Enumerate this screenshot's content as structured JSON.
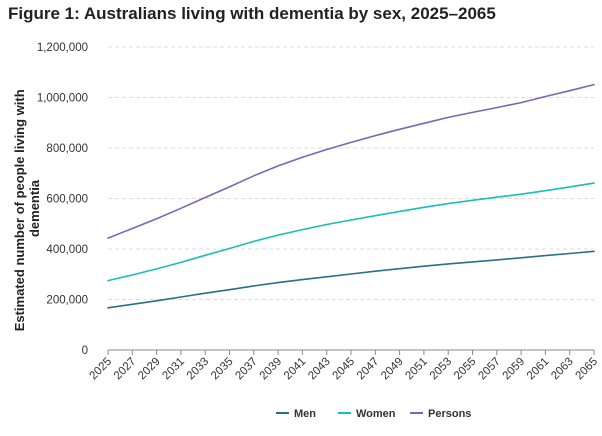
{
  "chart_data": {
    "type": "line",
    "title": "Figure 1: Australians living with dementia by sex, 2025–2065",
    "xlabel": "",
    "ylabel_lines": [
      "Estimated number of people living with",
      "dementia"
    ],
    "ylim": [
      0,
      1200000
    ],
    "yticks": [
      0,
      200000,
      400000,
      600000,
      800000,
      1000000,
      1200000
    ],
    "ytick_labels": [
      "0",
      "200,000",
      "400,000",
      "600,000",
      "800,000",
      "1,000,000",
      "1,200,000"
    ],
    "x": [
      2025,
      2027,
      2029,
      2031,
      2033,
      2035,
      2037,
      2039,
      2041,
      2043,
      2045,
      2047,
      2049,
      2051,
      2053,
      2055,
      2057,
      2059,
      2061,
      2063,
      2065
    ],
    "xtick_labels": [
      "2025",
      "2027",
      "2029",
      "2031",
      "2033",
      "2035",
      "2037",
      "2039",
      "2041",
      "2043",
      "2045",
      "2047",
      "2049",
      "2051",
      "2053",
      "2055",
      "2057",
      "2059",
      "2061",
      "2063",
      "2065"
    ],
    "grid": "horizontal dashed",
    "legend_position": "bottom-center",
    "series": [
      {
        "name": "Men",
        "color": "#2a6f86",
        "values": [
          167000,
          181000,
          195000,
          210000,
          225000,
          239000,
          254000,
          267000,
          279000,
          290000,
          301000,
          312000,
          322000,
          332000,
          341000,
          349000,
          357000,
          365000,
          374000,
          382000,
          391000
        ]
      },
      {
        "name": "Women",
        "color": "#17bfb8",
        "values": [
          275000,
          297000,
          321000,
          347000,
          375000,
          402000,
          430000,
          455000,
          477000,
          497000,
          515000,
          532000,
          549000,
          565000,
          580000,
          593000,
          605000,
          617000,
          631000,
          646000,
          661000
        ]
      },
      {
        "name": "Persons",
        "color": "#7b66b3",
        "values": [
          443000,
          481000,
          520000,
          561000,
          604000,
          646000,
          690000,
          729000,
          763000,
          794000,
          822000,
          849000,
          874000,
          898000,
          921000,
          941000,
          960000,
          980000,
          1004000,
          1027000,
          1051000
        ]
      }
    ]
  }
}
